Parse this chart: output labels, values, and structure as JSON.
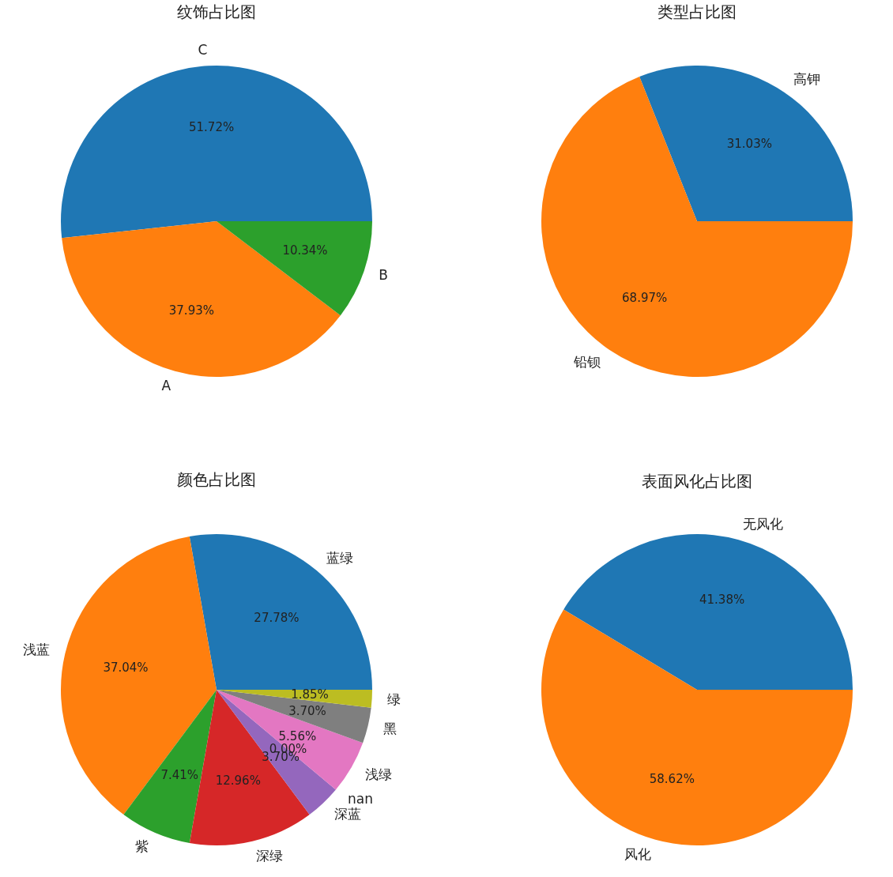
{
  "chart_data": [
    {
      "type": "pie",
      "title": "纹饰占比图",
      "categories": [
        "C",
        "A",
        "B"
      ],
      "values": [
        51.72,
        37.93,
        10.34
      ],
      "colors": [
        "#1f77b4",
        "#ff7f0e",
        "#2ca02c"
      ],
      "value_labels": [
        "51.72%",
        "37.93%",
        "10.34%"
      ]
    },
    {
      "type": "pie",
      "title": "类型占比图",
      "categories": [
        "高钾",
        "铅钡"
      ],
      "values": [
        31.03,
        68.97
      ],
      "colors": [
        "#1f77b4",
        "#ff7f0e"
      ],
      "value_labels": [
        "31.03%",
        "68.97%"
      ]
    },
    {
      "type": "pie",
      "title": "颜色占比图",
      "categories": [
        "蓝绿",
        "浅蓝",
        "紫",
        "深绿",
        "深蓝",
        "nan",
        "浅绿",
        "黑",
        "绿"
      ],
      "values": [
        27.78,
        37.04,
        7.41,
        12.96,
        3.7,
        0.0,
        5.56,
        3.7,
        1.85
      ],
      "colors": [
        "#1f77b4",
        "#ff7f0e",
        "#2ca02c",
        "#d62728",
        "#9467bd",
        "#8c564b",
        "#e377c2",
        "#7f7f7f",
        "#bcbd22"
      ],
      "value_labels": [
        "27.78%",
        "37.04%",
        "7.41%",
        "12.96%",
        "3.70%",
        "0.00%",
        "5.56%",
        "3.70%",
        "1.85%"
      ]
    },
    {
      "type": "pie",
      "title": "表面风化占比图",
      "categories": [
        "无风化",
        "风化"
      ],
      "values": [
        41.38,
        58.62
      ],
      "colors": [
        "#1f77b4",
        "#ff7f0e"
      ],
      "value_labels": [
        "41.38%",
        "58.62%"
      ]
    }
  ]
}
